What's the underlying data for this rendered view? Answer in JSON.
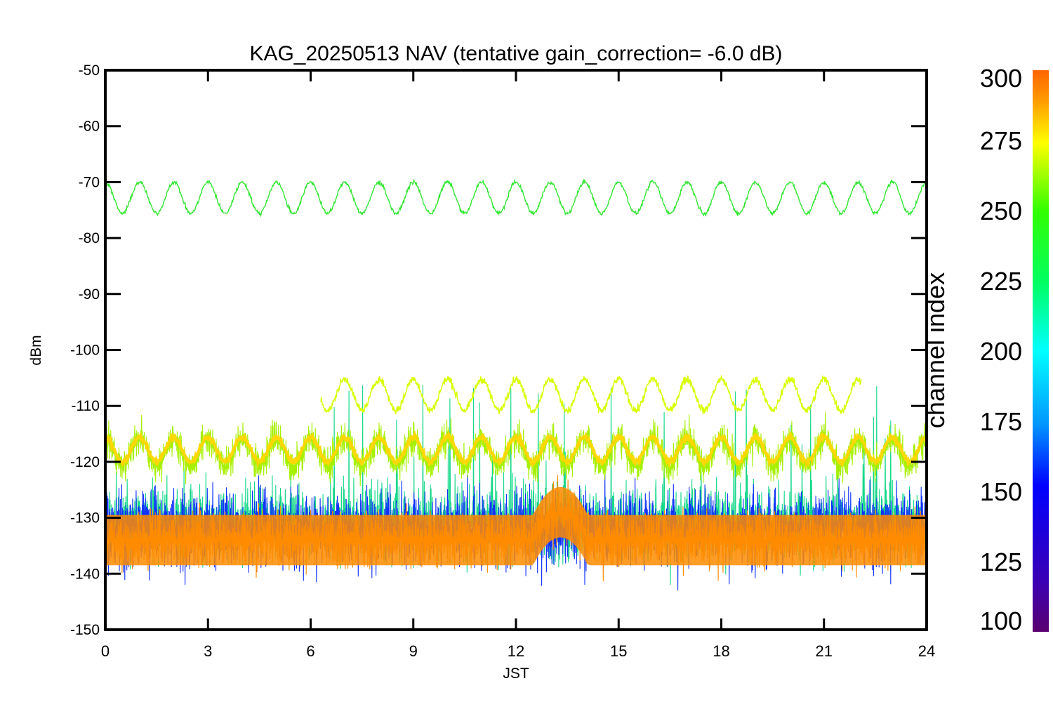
{
  "chart_data": {
    "type": "line",
    "title": "KAG_20250513 NAV (tentative gain_correction= -6.0 dB)",
    "xlabel": "JST",
    "ylabel": "dBm",
    "xlim": [
      0,
      24
    ],
    "ylim": [
      -150,
      -50
    ],
    "x_ticks": [
      "0",
      "3",
      "6",
      "9",
      "12",
      "15",
      "18",
      "21",
      "24"
    ],
    "y_ticks": [
      "-50",
      "-60",
      "-70",
      "-80",
      "-90",
      "-100",
      "-110",
      "-120",
      "-130",
      "-140",
      "-150"
    ],
    "grid": false,
    "colorbar": {
      "label": "channel index",
      "range": [
        100,
        300
      ],
      "ticks": [
        "300",
        "275",
        "250",
        "225",
        "200",
        "175",
        "150",
        "125",
        "100"
      ],
      "colormap": [
        "#5a0070",
        "#3b00b4",
        "#0000ff",
        "#0096ff",
        "#00ffff",
        "#00ff64",
        "#32ff00",
        "#ffff00",
        "#ff9600",
        "#ff6400"
      ]
    },
    "series": [
      {
        "channel_index": 245,
        "color": "#32e632",
        "x_range": [
          0,
          24
        ],
        "mean": -72.8,
        "amplitude": 2.8,
        "period_hours": 1.0,
        "noise": 0.25
      },
      {
        "channel_index": 262,
        "color": "#d8ff00",
        "x_range": [
          6.3,
          22.1
        ],
        "mean": -108.0,
        "amplitude": 2.8,
        "period_hours": 1.0,
        "noise": 0.5
      },
      {
        "channel_index": 255,
        "color": "#a6f000",
        "x_range": [
          0,
          24
        ],
        "mean": -118.3,
        "amplitude": 2.5,
        "period_hours": 1.0,
        "noise": 2.2
      },
      {
        "channel_index": 270,
        "color": "#ffd800",
        "x_range": [
          0,
          24
        ],
        "mean": -117.8,
        "amplitude": 2.2,
        "period_hours": 1.0,
        "noise": 0.3
      },
      {
        "channel_index": 200,
        "color": "#17d88a",
        "x_range": [
          0,
          24
        ],
        "mean": -131.0,
        "noise": 5.0,
        "spikes_up_to": -105
      },
      {
        "channel_index": 140,
        "color": "#1133ff",
        "x_range": [
          0,
          24
        ],
        "mean": -132.0,
        "noise": 5.0
      },
      {
        "channel_index": 290,
        "color": "#ff8c00",
        "x_range": [
          0,
          24
        ],
        "mean": -134.0,
        "noise": 3.5,
        "bump": {
          "center_hours": 13.3,
          "width_hours": 0.8,
          "rise_db": 5.0
        }
      }
    ]
  }
}
